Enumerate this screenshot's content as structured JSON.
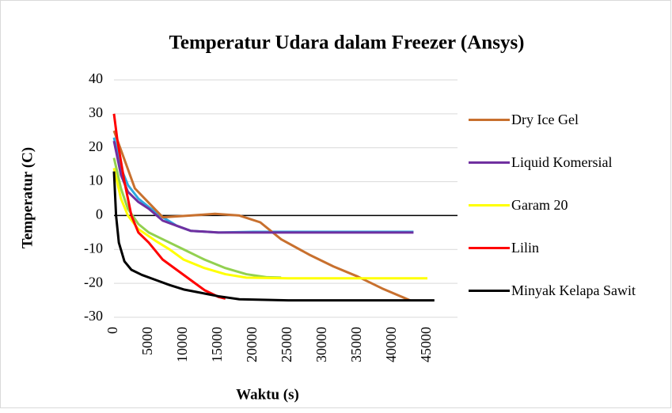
{
  "chart_data": {
    "type": "line",
    "title": "Temperatur Udara dalam Freezer (Ansys)",
    "x_label": "Waktu (s)",
    "y_label": "Temperatur (C)",
    "xlim": [
      0,
      50000
    ],
    "xticks": [
      0,
      5000,
      10000,
      15000,
      20000,
      25000,
      30000,
      35000,
      40000,
      45000
    ],
    "ylim": [
      -30,
      40
    ],
    "yticks": [
      -30,
      -20,
      -10,
      0,
      10,
      20,
      30,
      40
    ],
    "grid": true,
    "legend": "right",
    "series": [
      {
        "name": "Dry Ice Gel",
        "color": "#c8702e",
        "x": [
          0,
          3000,
          7000,
          11000,
          14500,
          18000,
          21000,
          24000,
          28000,
          31500,
          35000,
          38500,
          42500
        ],
        "values": [
          25,
          8,
          -0.5,
          0,
          0.5,
          0,
          -2,
          -7,
          -11.5,
          -15,
          -18,
          -21.5,
          -25
        ]
      },
      {
        "name": "Liquid Komersial",
        "color": "#7030a0",
        "x": [
          0,
          1000,
          2000,
          3500,
          5000,
          7000,
          9000,
          11000,
          15000,
          20000,
          30000,
          43000
        ],
        "values": [
          22,
          12,
          7,
          4,
          2,
          -1.5,
          -3,
          -4.5,
          -5,
          -5,
          -5,
          -5
        ]
      },
      {
        "name": "Garam 20",
        "color": "#ffff00",
        "x": [
          0,
          1000,
          2000,
          3500,
          6000,
          8000,
          10000,
          13000,
          16000,
          19000,
          25000,
          45000
        ],
        "values": [
          14,
          5,
          0,
          -4,
          -7.5,
          -10,
          -13,
          -15.5,
          -17.3,
          -18.3,
          -18.5,
          -18.5
        ]
      },
      {
        "name": "Lilin",
        "color": "#ff0000",
        "x": [
          0,
          500,
          1500,
          2500,
          3500,
          5000,
          7000,
          9000,
          11000,
          13000,
          15000,
          16000
        ],
        "values": [
          30,
          22,
          10,
          0,
          -5,
          -8,
          -13,
          -16,
          -19,
          -22,
          -24,
          -24.5
        ]
      },
      {
        "name": "Minyak Kelapa Sawit",
        "color": "#000000",
        "x": [
          0,
          300,
          700,
          1500,
          2500,
          4000,
          6000,
          8000,
          10000,
          13000,
          15000,
          18000,
          25000,
          46000
        ],
        "values": [
          13,
          0,
          -8,
          -13.5,
          -16,
          -17.5,
          -19,
          -20.5,
          -21.8,
          -23,
          -23.8,
          -24.7,
          -25,
          -25
        ]
      },
      {
        "color": "#92d050",
        "x": [
          0,
          1000,
          2000,
          3500,
          5000,
          7000,
          10000,
          13000,
          16000,
          19000,
          22000,
          24000
        ],
        "values": [
          17,
          8,
          2,
          -2.5,
          -5,
          -7,
          -10,
          -13,
          -15.5,
          -17.3,
          -18.2,
          -18.3
        ]
      },
      {
        "color": "#2ea8e0",
        "x": [
          0,
          1000,
          2000,
          3500,
          5000,
          7000,
          9000,
          11000,
          15000,
          20000,
          43000
        ],
        "values": [
          23,
          14,
          9,
          5,
          2.5,
          -0.5,
          -3,
          -4.5,
          -5,
          -4.8,
          -4.8
        ]
      }
    ]
  }
}
